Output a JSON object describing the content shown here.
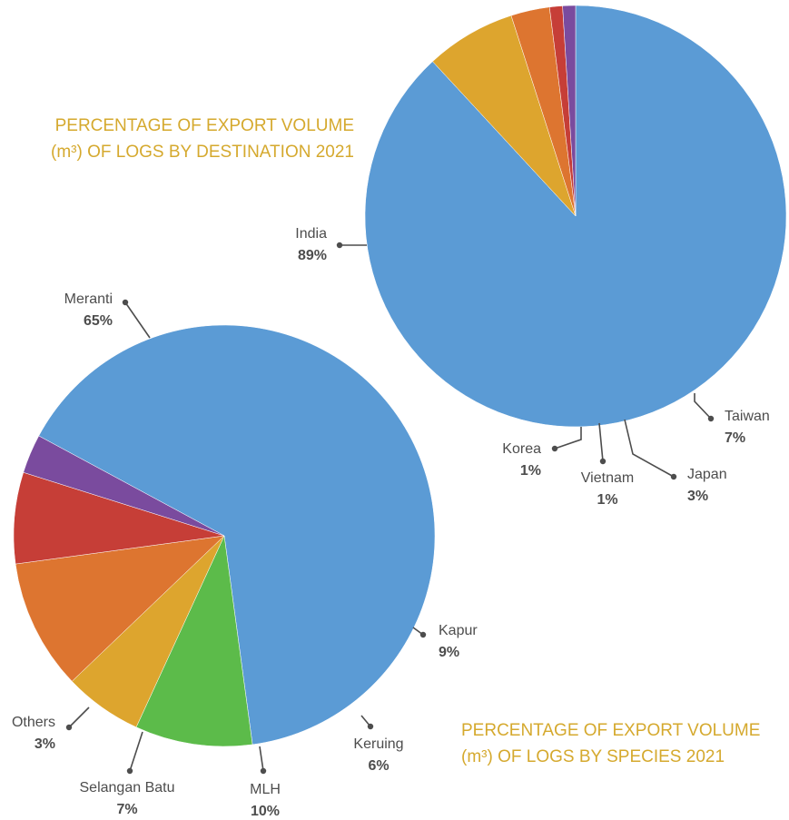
{
  "chart_data": [
    {
      "type": "pie",
      "title": "PERCENTAGE OF EXPORT VOLUME (m³) OF LOGS BY DESTINATION 2021",
      "title_lines": [
        "PERCENTAGE OF EXPORT VOLUME",
        "(m³) OF LOGS BY DESTINATION 2021"
      ],
      "slices": [
        {
          "label": "India",
          "value": 89,
          "pct_label": "89%",
          "color": "#5b9bd5"
        },
        {
          "label": "Taiwan",
          "value": 7,
          "pct_label": "7%",
          "color": "#dda52e"
        },
        {
          "label": "Japan",
          "value": 3,
          "pct_label": "3%",
          "color": "#dd7530"
        },
        {
          "label": "Vietnam",
          "value": 1,
          "pct_label": "1%",
          "color": "#c63e37"
        },
        {
          "label": "Korea",
          "value": 1,
          "pct_label": "1%",
          "color": "#7a4b9e"
        }
      ]
    },
    {
      "type": "pie",
      "title": "PERCENTAGE OF EXPORT VOLUME (m³) OF LOGS BY SPECIES 2021",
      "title_lines": [
        "PERCENTAGE OF EXPORT VOLUME",
        "(m³) OF LOGS BY SPECIES 2021"
      ],
      "slices": [
        {
          "label": "Meranti",
          "value": 65,
          "pct_label": "65%",
          "color": "#5b9bd5"
        },
        {
          "label": "Kapur",
          "value": 9,
          "pct_label": "9%",
          "color": "#5cbb4a"
        },
        {
          "label": "Keruing",
          "value": 6,
          "pct_label": "6%",
          "color": "#dda52e"
        },
        {
          "label": "MLH",
          "value": 10,
          "pct_label": "10%",
          "color": "#dd7530"
        },
        {
          "label": "Selangan Batu",
          "value": 7,
          "pct_label": "7%",
          "color": "#c63e37"
        },
        {
          "label": "Others",
          "value": 3,
          "pct_label": "3%",
          "color": "#7a4b9e"
        }
      ]
    }
  ]
}
